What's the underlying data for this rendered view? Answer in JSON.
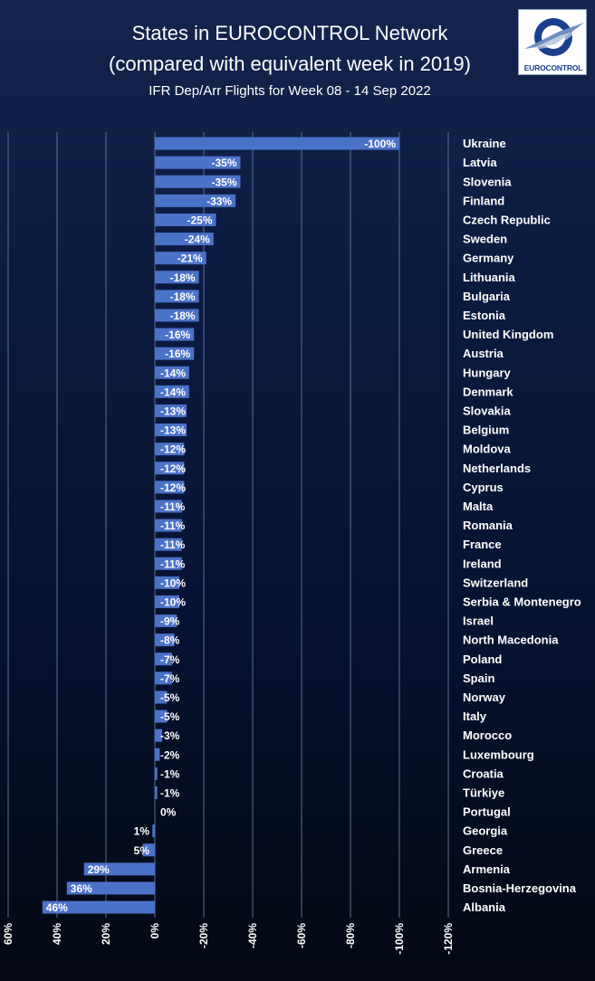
{
  "header": {
    "title": "States in EUROCONTROL Network",
    "subtitle": "(compared with equivalent week in 2019)",
    "caption": "IFR Dep/Arr Flights for Week 08 - 14 Sep 2022"
  },
  "logo": {
    "text": "EUROCONTROL"
  },
  "colors": {
    "bar": "#4a72c8",
    "grid": "#5b6e92",
    "label": "#ffffff"
  },
  "chart_data": {
    "type": "bar",
    "orientation": "horizontal",
    "axis_reversed": true,
    "xlim": [
      60,
      -120
    ],
    "xticks": [
      "60%",
      "40%",
      "20%",
      "0%",
      "-20%",
      "-40%",
      "-60%",
      "-80%",
      "-100%",
      "-120%"
    ],
    "xtick_values": [
      60,
      40,
      20,
      0,
      -20,
      -40,
      -60,
      -80,
      -100,
      -120
    ],
    "grid": true,
    "categories": [
      "Ukraine",
      "Latvia",
      "Slovenia",
      "Finland",
      "Czech Republic",
      "Sweden",
      "Germany",
      "Lithuania",
      "Bulgaria",
      "Estonia",
      "United Kingdom",
      "Austria",
      "Hungary",
      "Denmark",
      "Slovakia",
      "Belgium",
      "Moldova",
      "Netherlands",
      "Cyprus",
      "Malta",
      "Romania",
      "France",
      "Ireland",
      "Switzerland",
      "Serbia & Montenegro",
      "Israel",
      "North Macedonia",
      "Poland",
      "Spain",
      "Norway",
      "Italy",
      "Morocco",
      "Luxembourg",
      "Croatia",
      "Türkiye",
      "Portugal",
      "Georgia",
      "Greece",
      "Armenia",
      "Bosnia-Herzegovina",
      "Albania"
    ],
    "values": [
      -100,
      -35,
      -35,
      -33,
      -25,
      -24,
      -21,
      -18,
      -18,
      -18,
      -16,
      -16,
      -14,
      -14,
      -13,
      -13,
      -12,
      -12,
      -12,
      -11,
      -11,
      -11,
      -11,
      -10,
      -10,
      -9,
      -8,
      -7,
      -7,
      -5,
      -5,
      -3,
      -2,
      -1,
      -1,
      0,
      1,
      5,
      29,
      36,
      46
    ],
    "labels": [
      "-100%",
      "-35%",
      "-35%",
      "-33%",
      "-25%",
      "-24%",
      "-21%",
      "-18%",
      "-18%",
      "-18%",
      "-16%",
      "-16%",
      "-14%",
      "-14%",
      "-13%",
      "-13%",
      "-12%",
      "-12%",
      "-12%",
      "-11%",
      "-11%",
      "-11%",
      "-11%",
      "-10%",
      "-10%",
      "-9%",
      "-8%",
      "-7%",
      "-7%",
      "-5%",
      "-5%",
      "-3%",
      "-2%",
      "-1%",
      "-1%",
      "0%",
      "1%",
      "5%",
      "29%",
      "36%",
      "46%"
    ]
  }
}
